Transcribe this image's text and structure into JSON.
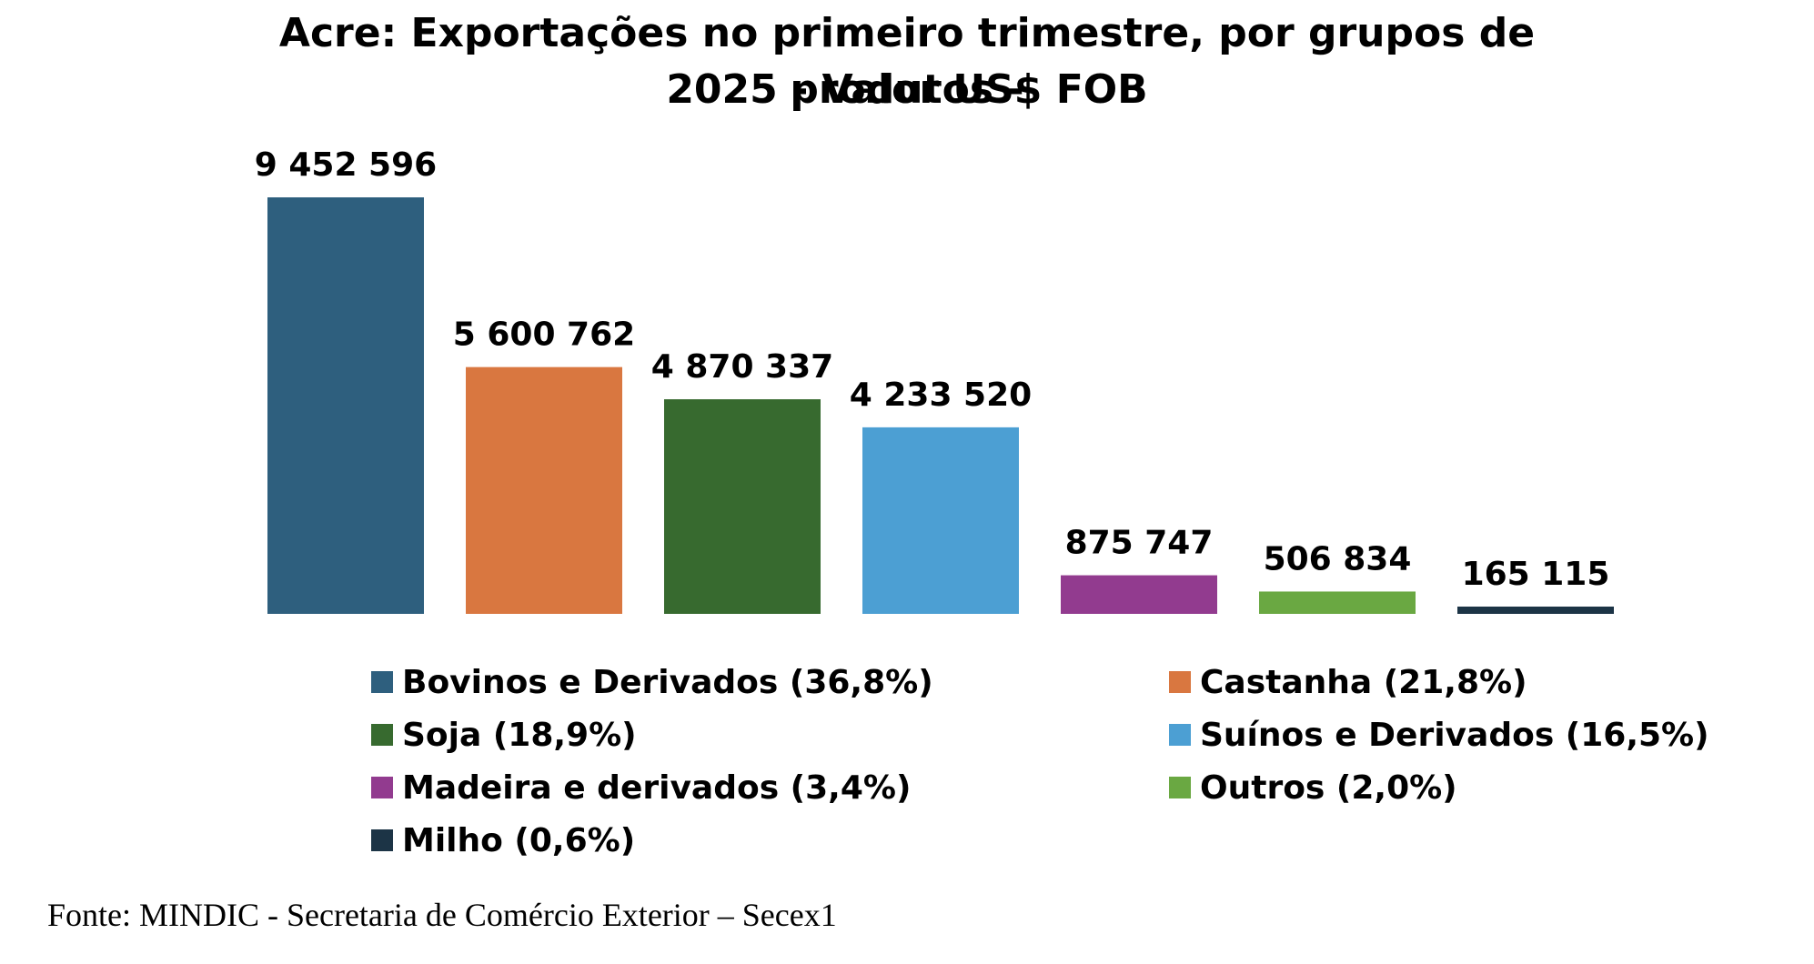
{
  "chart_data": {
    "type": "bar",
    "title_lines": [
      "Acre: Exportações no primeiro trimestre, por grupos de produtos -",
      "2025 - Valor US$ FOB"
    ],
    "categories": [
      "Bovinos e Derivados",
      "Castanha",
      "Soja",
      "Suínos e Derivados",
      "Madeira e derivados",
      "Outros",
      "Milho"
    ],
    "values": [
      9452596,
      5600762,
      4870337,
      4233520,
      875747,
      506834,
      165115
    ],
    "data_labels": [
      "9 452 596",
      "5 600 762",
      "4 870 337",
      "4 233 520",
      "875 747",
      "506 834",
      "165 115"
    ],
    "colors": [
      "#2e5f7e",
      "#d97740",
      "#376a2f",
      "#4c9fd3",
      "#923b8f",
      "#6aa842",
      "#1c3446"
    ],
    "legend": [
      "Bovinos e Derivados (36,8%)",
      "Castanha (21,8%)",
      "Soja (18,9%)",
      "Suínos e Derivados (16,5%)",
      "Madeira e derivados (3,4%)",
      "Outros (2,0%)",
      "Milho (0,6%)"
    ],
    "legend_placement": "bottom",
    "grid": false,
    "ylim": [
      0,
      9452596
    ]
  },
  "source": "Fonte: MINDIC - Secretaria de Comércio Exterior – Secex1"
}
